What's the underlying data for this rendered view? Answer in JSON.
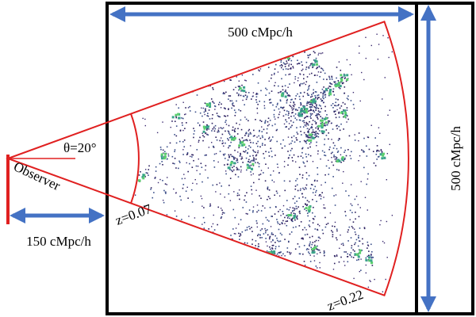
{
  "labels": {
    "top_width": "500 cMpc/h",
    "right_height": "500 cMpc/h",
    "offset": "150 cMpc/h",
    "angle": "θ=20°",
    "observer": "Observer",
    "z_inner": "z=0.07",
    "z_outer": "z=0.22"
  }
}
